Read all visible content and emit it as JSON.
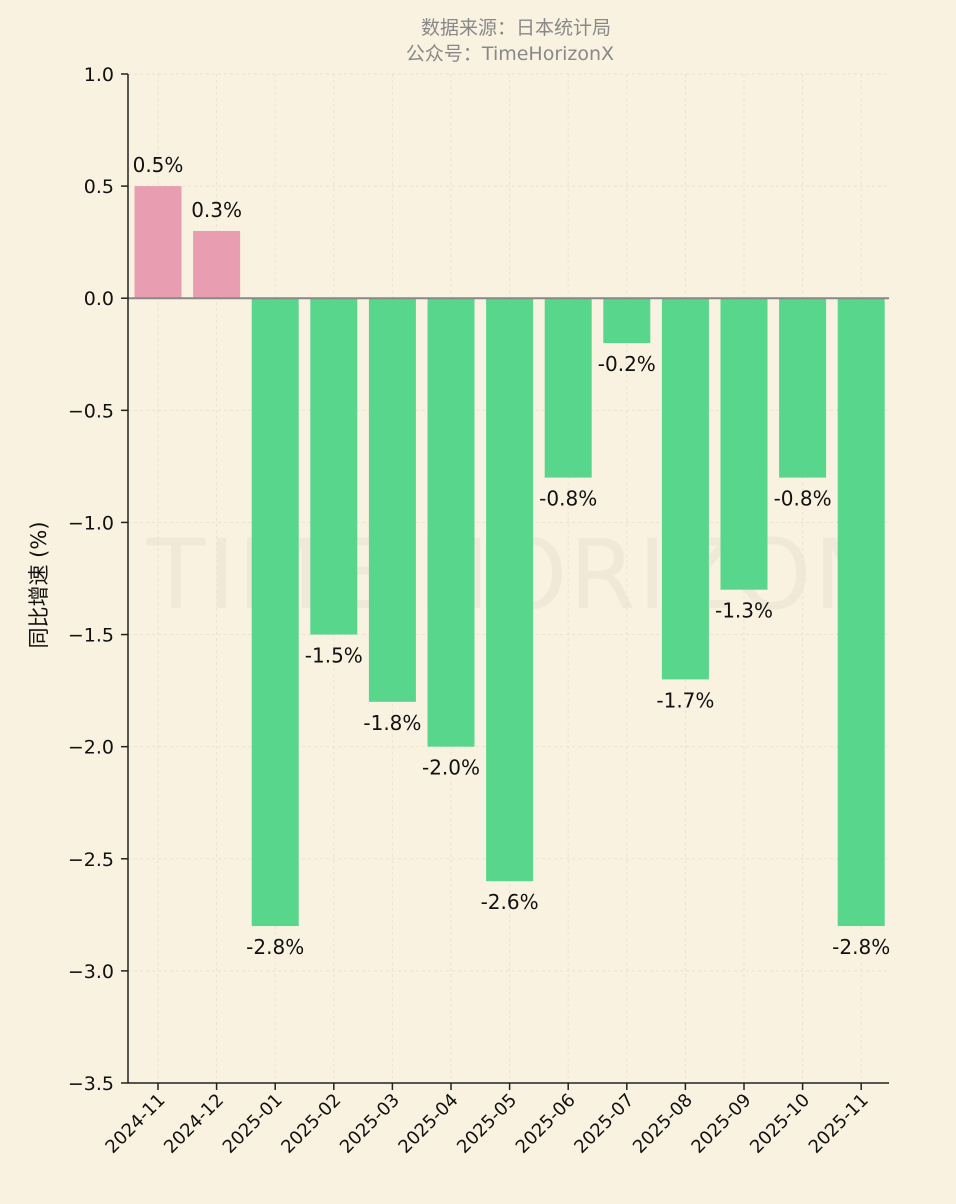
{
  "header": {
    "source_line": "数据来源：日本统计局",
    "account_line": "公众号：TimeHorizonX"
  },
  "watermark": "TIME HORIZON",
  "chart_data": {
    "type": "bar",
    "categories": [
      "2024-11",
      "2024-12",
      "2025-01",
      "2025-02",
      "2025-03",
      "2025-04",
      "2025-05",
      "2025-06",
      "2025-07",
      "2025-08",
      "2025-09",
      "2025-10",
      "2025-11"
    ],
    "values": [
      0.5,
      0.3,
      -2.8,
      -1.5,
      -1.8,
      -2.0,
      -2.6,
      -0.8,
      -0.2,
      -1.7,
      -1.3,
      -0.8,
      -2.8
    ],
    "data_labels": [
      "0.5%",
      "0.3%",
      "-2.8%",
      "-1.5%",
      "-1.8%",
      "-2.0%",
      "-2.6%",
      "-0.8%",
      "-0.2%",
      "-1.7%",
      "-1.3%",
      "-0.8%",
      "-2.8%"
    ],
    "title": "",
    "xlabel": "",
    "ylabel": "同比增速 (%)",
    "ylim": [
      -3.5,
      1.0
    ],
    "yticks": [
      1.0,
      0.5,
      0.0,
      -0.5,
      -1.0,
      -1.5,
      -2.0,
      -2.5,
      -3.0,
      -3.5
    ],
    "ytick_labels": [
      "1.0",
      "0.5",
      "0.0",
      "−0.5",
      "−1.0",
      "−1.5",
      "−2.0",
      "−2.5",
      "−3.0",
      "−3.5"
    ],
    "grid": true,
    "colors": {
      "positive": "#e89eb0",
      "negative": "#57d68c",
      "zero_line": "#888888",
      "axis": "#222222",
      "grid": "#ebe3cf"
    }
  }
}
